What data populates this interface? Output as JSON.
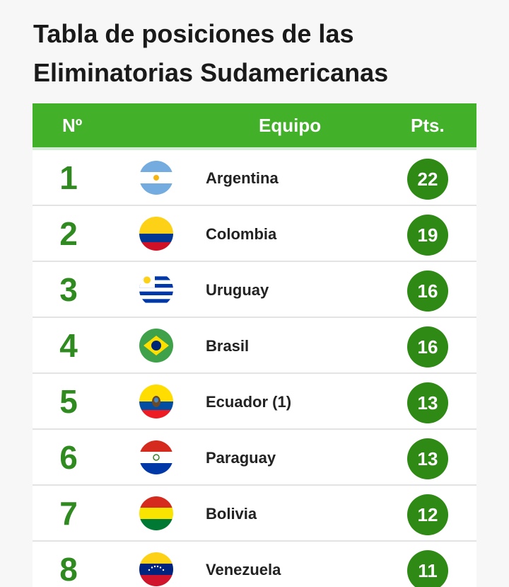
{
  "page": {
    "title": "Tabla de posiciones de las Eliminatorias Sudamericanas"
  },
  "table": {
    "headers": {
      "position": "Nº",
      "team": "Equipo",
      "points": "Pts."
    },
    "rows": [
      {
        "position": "1",
        "team": "Argentina",
        "points": "22",
        "flag": "argentina-flag-icon"
      },
      {
        "position": "2",
        "team": "Colombia",
        "points": "19",
        "flag": "colombia-flag-icon"
      },
      {
        "position": "3",
        "team": "Uruguay",
        "points": "16",
        "flag": "uruguay-flag-icon"
      },
      {
        "position": "4",
        "team": "Brasil",
        "points": "16",
        "flag": "brazil-flag-icon"
      },
      {
        "position": "5",
        "team": "Ecuador (1)",
        "points": "13",
        "flag": "ecuador-flag-icon"
      },
      {
        "position": "6",
        "team": "Paraguay",
        "points": "13",
        "flag": "paraguay-flag-icon"
      },
      {
        "position": "7",
        "team": "Bolivia",
        "points": "12",
        "flag": "bolivia-flag-icon"
      },
      {
        "position": "8",
        "team": "Venezuela",
        "points": "11",
        "flag": "venezuela-flag-icon"
      }
    ]
  },
  "colors": {
    "header_bg": "#43b02a",
    "position_text": "#2f8a1f",
    "points_badge": "#2e8a14"
  }
}
